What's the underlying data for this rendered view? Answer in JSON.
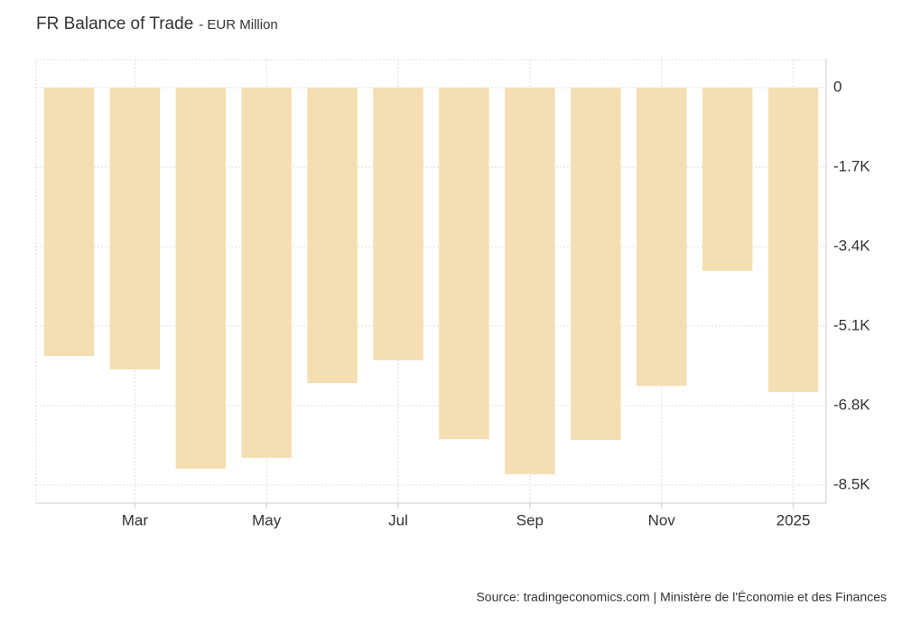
{
  "chart_data": {
    "type": "bar",
    "title": "FR Balance of Trade",
    "subtitle": "- EUR Million",
    "categories": [
      null,
      "Mar",
      null,
      "May",
      null,
      "Jul",
      null,
      "Sep",
      null,
      "Nov",
      null,
      "2025"
    ],
    "values": [
      -5740,
      -6030,
      -8150,
      -7920,
      -6320,
      -5830,
      -7520,
      -8270,
      -7540,
      -6380,
      -3920,
      -6510
    ],
    "color": "#f3dfb3",
    "ylim": [
      -8890,
      600
    ],
    "yticks": [
      0,
      {
        "value": -1700,
        "label": "-1.7K"
      },
      {
        "value": -3400,
        "label": "-3.4K"
      },
      {
        "value": -5100,
        "label": "-5.1K"
      },
      {
        "value": -6800,
        "label": "-6.8K"
      },
      {
        "value": -8500,
        "label": "-8.5K"
      }
    ],
    "grid": true,
    "annotations": [
      "Source: tradingeconomics.com | Ministère de l'Économie et des Finances"
    ]
  }
}
